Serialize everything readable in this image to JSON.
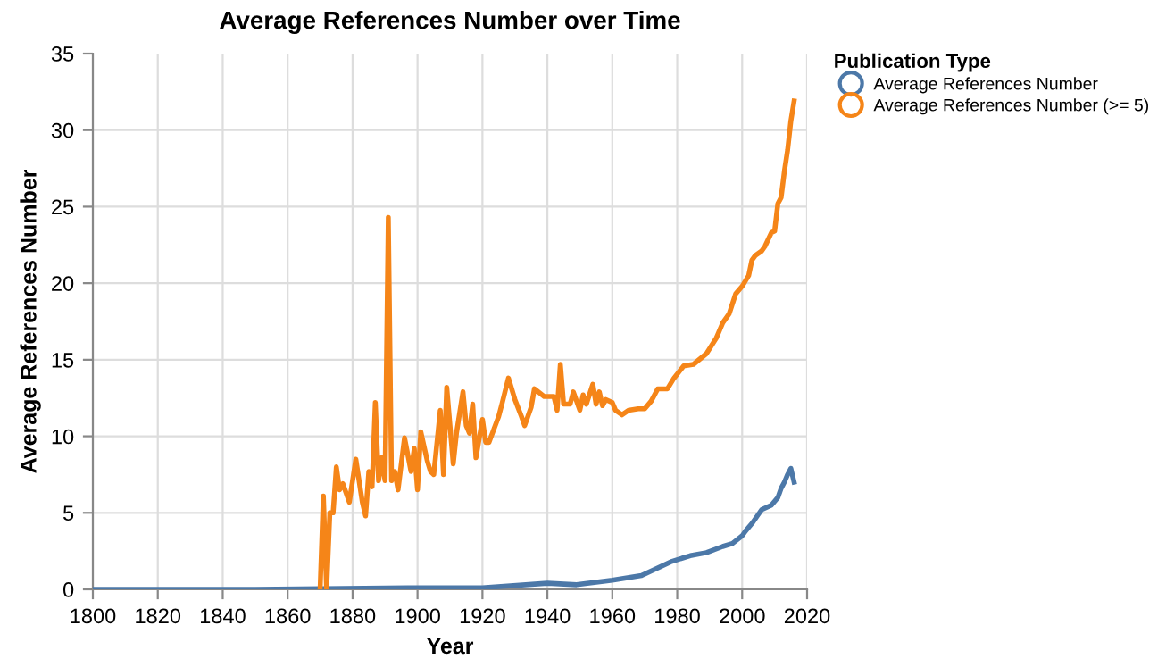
{
  "chart_data": {
    "type": "line",
    "title": "Average References Number over Time",
    "xlabel": "Year",
    "ylabel": "Average References Number",
    "legend_title": "Publication Type",
    "legend": "top right",
    "grid": true,
    "marker": "none",
    "line_style": "solid",
    "xlim": [
      1800,
      2020
    ],
    "xticks": [
      1800,
      1820,
      1840,
      1860,
      1880,
      1900,
      1920,
      1940,
      1960,
      1980,
      2000,
      2020
    ],
    "ylim": [
      0,
      35
    ],
    "yticks": [
      0,
      5,
      10,
      15,
      20,
      25,
      30,
      35
    ],
    "series": [
      {
        "name": "Average References Number",
        "color": "#4c78a8",
        "x": [
          1800,
          1850,
          1897,
          1920,
          1940,
          1949,
          1960,
          1969,
          1978,
          1984,
          1989,
          1994,
          1997,
          2000,
          2001,
          2003,
          2005,
          2006,
          2009,
          2011,
          2012,
          2013,
          2014,
          2015,
          2016
        ],
        "values": [
          0,
          0,
          0.1,
          0.1,
          0.4,
          0.3,
          0.6,
          0.9,
          1.8,
          2.2,
          2.4,
          2.8,
          3.0,
          3.5,
          3.8,
          4.3,
          4.9,
          5.2,
          5.5,
          6.0,
          6.6,
          7.0,
          7.5,
          7.9,
          7.0
        ]
      },
      {
        "name": "Average References Number (>= 5)",
        "color": "#f58518",
        "x": [
          1870,
          1871,
          1872,
          1873,
          1874,
          1875,
          1876,
          1877,
          1879,
          1881,
          1883,
          1884,
          1885,
          1886,
          1887,
          1888,
          1889,
          1890,
          1891,
          1892,
          1893,
          1894,
          1896,
          1898,
          1899,
          1900,
          1901,
          1903,
          1904,
          1905,
          1907,
          1908,
          1909,
          1911,
          1912,
          1914,
          1915,
          1916,
          1917,
          1918,
          1920,
          1921,
          1922,
          1925,
          1926,
          1928,
          1930,
          1932,
          1933,
          1935,
          1936,
          1939,
          1942,
          1943,
          1944,
          1945,
          1947,
          1948,
          1950,
          1951,
          1952,
          1954,
          1955,
          1956,
          1957,
          1958,
          1960,
          1961,
          1963,
          1965,
          1968,
          1970,
          1972,
          1974,
          1977,
          1979,
          1982,
          1985,
          1989,
          1992,
          1994,
          1996,
          1998,
          2000,
          2002,
          2003,
          2004,
          2006,
          2007,
          2009,
          2010,
          2011,
          2012,
          2013,
          2014,
          2015,
          2016
        ],
        "values": [
          0,
          6.1,
          0,
          5.0,
          5.0,
          8.0,
          6.5,
          6.9,
          5.7,
          8.5,
          5.7,
          4.8,
          7.7,
          6.7,
          12.2,
          7.1,
          8.6,
          7.1,
          24.3,
          7.1,
          7.7,
          6.5,
          9.9,
          7.7,
          9.2,
          6.5,
          10.3,
          8.4,
          7.7,
          7.5,
          11.7,
          7.5,
          13.2,
          8.2,
          10.2,
          12.9,
          10.7,
          10.2,
          12.1,
          8.6,
          11.1,
          9.6,
          9.6,
          11.3,
          12.1,
          13.8,
          12.4,
          11.3,
          10.7,
          11.9,
          13.1,
          12.6,
          12.6,
          11.7,
          14.7,
          12.1,
          12.1,
          12.9,
          11.7,
          12.7,
          12.1,
          13.4,
          12.1,
          12.9,
          12.0,
          12.4,
          12.2,
          11.7,
          11.4,
          11.7,
          11.8,
          11.8,
          12.3,
          13.1,
          13.1,
          13.8,
          14.6,
          14.7,
          15.4,
          16.4,
          17.4,
          18.0,
          19.3,
          19.8,
          20.5,
          21.5,
          21.8,
          22.1,
          22.4,
          23.3,
          23.4,
          25.2,
          25.6,
          27.3,
          28.7,
          30.6,
          31.9
        ]
      }
    ]
  }
}
